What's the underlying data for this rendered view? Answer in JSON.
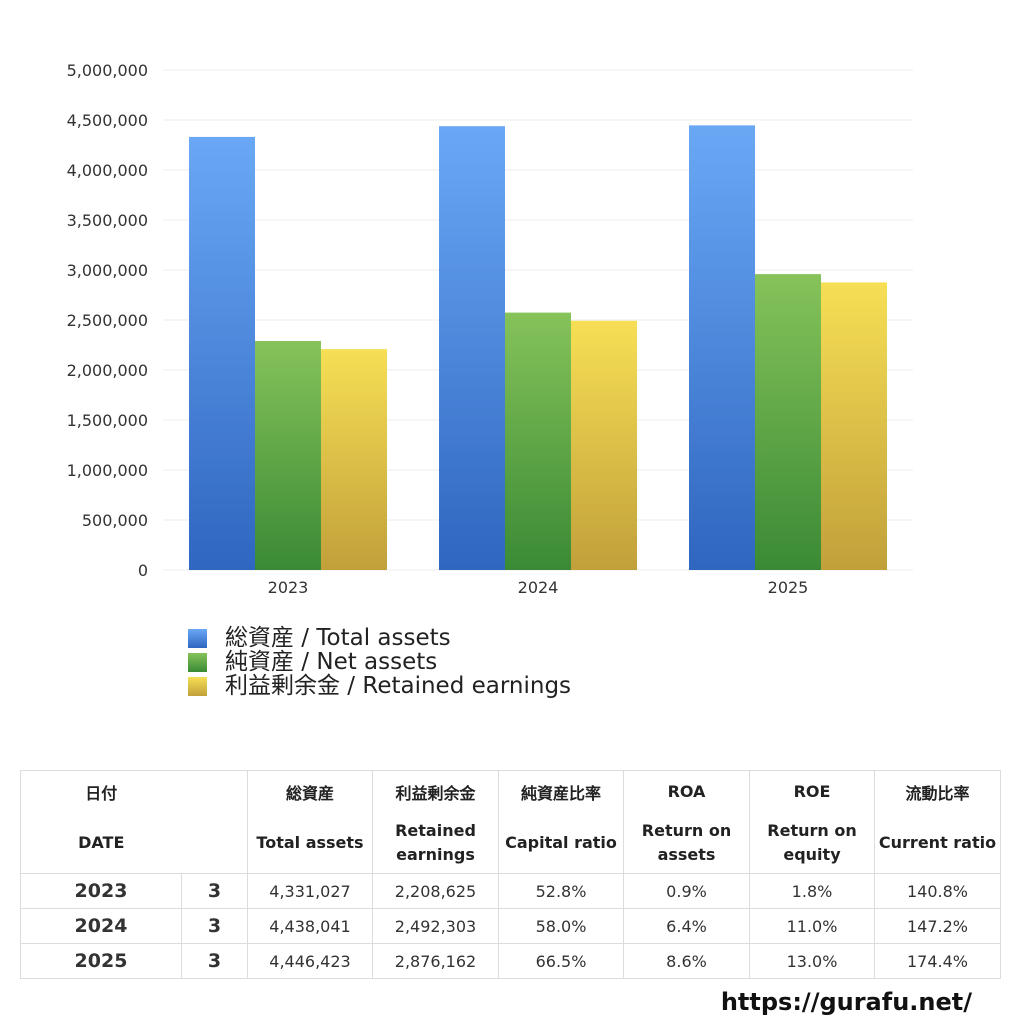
{
  "chart_data": {
    "type": "bar",
    "categories": [
      "2023",
      "2024",
      "2025"
    ],
    "series": [
      {
        "name": "総資産 / Total assets",
        "values": [
          4331027,
          4438041,
          4446423
        ],
        "color_top": "#6aa8f5",
        "color_bottom": "#2f66c0"
      },
      {
        "name": "純資産 / Net assets",
        "values": [
          2290000,
          2574000,
          2959000
        ],
        "color_top": "#86c35a",
        "color_bottom": "#3a8a35"
      },
      {
        "name": "利益剰余金 / Retained earnings",
        "values": [
          2208625,
          2492303,
          2876162
        ],
        "color_top": "#f6df55",
        "color_bottom": "#c1a03a"
      }
    ],
    "ylim": [
      0,
      5000000
    ],
    "yticks": [
      0,
      500000,
      1000000,
      1500000,
      2000000,
      2500000,
      3000000,
      3500000,
      4000000,
      4500000,
      5000000
    ],
    "ytick_labels": [
      "0",
      "500,000",
      "1,000,000",
      "1,500,000",
      "2,000,000",
      "2,500,000",
      "3,000,000",
      "3,500,000",
      "4,000,000",
      "4,500,000",
      "5,000,000"
    ],
    "grid": true,
    "legend": "bottom-left"
  },
  "table": {
    "header_jp": [
      "日付",
      "",
      "総資産",
      "利益剰余金",
      "純資産比率",
      "ROA",
      "ROE",
      "流動比率"
    ],
    "header_en": [
      "DATE",
      "",
      "Total assets",
      "Retained earnings",
      "Capital ratio",
      "Return on assets",
      "Return on equity",
      "Current ratio"
    ],
    "rows": [
      {
        "year": "2023",
        "month": "3",
        "total_assets": "4,331,027",
        "retained": "2,208,625",
        "capital_ratio": "52.8%",
        "roa": "0.9%",
        "roe": "1.8%",
        "current_ratio": "140.8%"
      },
      {
        "year": "2024",
        "month": "3",
        "total_assets": "4,438,041",
        "retained": "2,492,303",
        "capital_ratio": "58.0%",
        "roa": "6.4%",
        "roe": "11.0%",
        "current_ratio": "147.2%"
      },
      {
        "year": "2025",
        "month": "3",
        "total_assets": "4,446,423",
        "retained": "2,876,162",
        "capital_ratio": "66.5%",
        "roa": "8.6%",
        "roe": "13.0%",
        "current_ratio": "174.4%"
      }
    ]
  },
  "footer": {
    "url": "https://gurafu.net/"
  }
}
